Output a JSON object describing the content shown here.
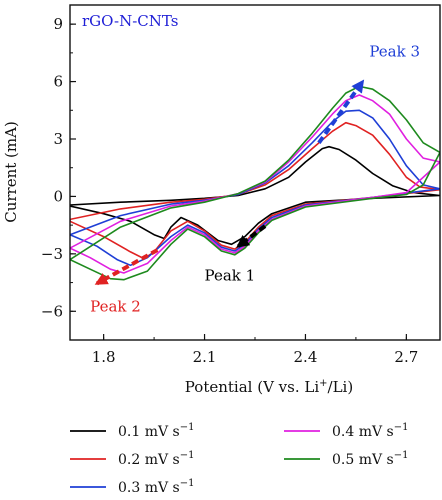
{
  "chart_data": {
    "type": "line",
    "title": "rGO-N-CNTs",
    "title_color": "#1f1fd6",
    "xlabel": {
      "main": "Potential (V vs. Li",
      "sup": "+",
      "tail": "/Li)"
    },
    "ylabel": "Current (mA)",
    "xlim": [
      1.7,
      2.8
    ],
    "ylim": [
      -7.5,
      10
    ],
    "x_ticks": [
      1.8,
      2.1,
      2.4,
      2.7
    ],
    "x_tick_labels": [
      "1.8",
      "2.1",
      "2.4",
      "2.7"
    ],
    "y_ticks": [
      9,
      6,
      3,
      0,
      -3,
      -6
    ],
    "y_tick_labels": [
      "9",
      "6",
      "3",
      "0",
      "−3",
      "−6"
    ],
    "grid": false,
    "legend_position": "below",
    "series": [
      {
        "name": "0.1 mV s",
        "unit_sup": "−1",
        "color": "#000000",
        "anodic": [
          [
            1.7,
            -0.45
          ],
          [
            1.85,
            -0.3
          ],
          [
            2.0,
            -0.2
          ],
          [
            2.1,
            -0.1
          ],
          [
            2.2,
            0.05
          ],
          [
            2.28,
            0.4
          ],
          [
            2.35,
            1.0
          ],
          [
            2.4,
            1.8
          ],
          [
            2.45,
            2.5
          ],
          [
            2.47,
            2.6
          ],
          [
            2.5,
            2.45
          ],
          [
            2.55,
            1.9
          ],
          [
            2.6,
            1.2
          ],
          [
            2.66,
            0.55
          ],
          [
            2.72,
            0.2
          ],
          [
            2.8,
            0.05
          ]
        ],
        "cathodic": [
          [
            2.8,
            0.05
          ],
          [
            2.6,
            -0.1
          ],
          [
            2.4,
            -0.3
          ],
          [
            2.3,
            -0.9
          ],
          [
            2.26,
            -1.4
          ],
          [
            2.22,
            -2.1
          ],
          [
            2.18,
            -2.5
          ],
          [
            2.14,
            -2.3
          ],
          [
            2.08,
            -1.5
          ],
          [
            2.03,
            -1.1
          ],
          [
            2.0,
            -1.6
          ],
          [
            1.98,
            -2.2
          ],
          [
            1.95,
            -2.0
          ],
          [
            1.88,
            -1.3
          ],
          [
            1.8,
            -0.9
          ],
          [
            1.7,
            -0.5
          ]
        ]
      },
      {
        "name": "0.2 mV s",
        "unit_sup": "−1",
        "color": "#e02222",
        "anodic": [
          [
            1.7,
            -1.2
          ],
          [
            1.85,
            -0.65
          ],
          [
            2.0,
            -0.3
          ],
          [
            2.1,
            -0.15
          ],
          [
            2.2,
            0.1
          ],
          [
            2.28,
            0.6
          ],
          [
            2.35,
            1.4
          ],
          [
            2.42,
            2.5
          ],
          [
            2.48,
            3.4
          ],
          [
            2.52,
            3.85
          ],
          [
            2.55,
            3.7
          ],
          [
            2.6,
            3.2
          ],
          [
            2.65,
            2.2
          ],
          [
            2.7,
            1.0
          ],
          [
            2.74,
            0.5
          ],
          [
            2.8,
            0.35
          ]
        ],
        "cathodic": [
          [
            2.8,
            0.35
          ],
          [
            2.6,
            -0.05
          ],
          [
            2.4,
            -0.4
          ],
          [
            2.3,
            -1.0
          ],
          [
            2.26,
            -1.6
          ],
          [
            2.22,
            -2.4
          ],
          [
            2.19,
            -2.75
          ],
          [
            2.15,
            -2.55
          ],
          [
            2.1,
            -1.8
          ],
          [
            2.05,
            -1.3
          ],
          [
            2.0,
            -1.8
          ],
          [
            1.95,
            -2.9
          ],
          [
            1.92,
            -3.25
          ],
          [
            1.88,
            -2.9
          ],
          [
            1.8,
            -2.1
          ],
          [
            1.7,
            -1.3
          ]
        ]
      },
      {
        "name": "0.3 mV s",
        "unit_sup": "−1",
        "color": "#1f3fd6",
        "anodic": [
          [
            1.7,
            -2.0
          ],
          [
            1.85,
            -1.0
          ],
          [
            2.0,
            -0.4
          ],
          [
            2.1,
            -0.2
          ],
          [
            2.2,
            0.1
          ],
          [
            2.28,
            0.7
          ],
          [
            2.35,
            1.6
          ],
          [
            2.42,
            2.8
          ],
          [
            2.48,
            3.9
          ],
          [
            2.52,
            4.45
          ],
          [
            2.56,
            4.5
          ],
          [
            2.6,
            4.1
          ],
          [
            2.65,
            3.0
          ],
          [
            2.7,
            1.6
          ],
          [
            2.75,
            0.6
          ],
          [
            2.8,
            0.4
          ]
        ],
        "cathodic": [
          [
            2.8,
            0.4
          ],
          [
            2.6,
            -0.05
          ],
          [
            2.4,
            -0.45
          ],
          [
            2.3,
            -1.1
          ],
          [
            2.26,
            -1.7
          ],
          [
            2.22,
            -2.5
          ],
          [
            2.19,
            -2.85
          ],
          [
            2.15,
            -2.65
          ],
          [
            2.1,
            -1.9
          ],
          [
            2.05,
            -1.5
          ],
          [
            2.0,
            -2.1
          ],
          [
            1.93,
            -3.2
          ],
          [
            1.88,
            -3.6
          ],
          [
            1.84,
            -3.3
          ],
          [
            1.78,
            -2.6
          ],
          [
            1.7,
            -2.0
          ]
        ]
      },
      {
        "name": "0.4 mV s",
        "unit_sup": "−1",
        "color": "#e020e0",
        "anodic": [
          [
            1.7,
            -2.7
          ],
          [
            1.85,
            -1.3
          ],
          [
            2.0,
            -0.5
          ],
          [
            2.1,
            -0.25
          ],
          [
            2.2,
            0.15
          ],
          [
            2.28,
            0.75
          ],
          [
            2.35,
            1.8
          ],
          [
            2.42,
            3.1
          ],
          [
            2.48,
            4.3
          ],
          [
            2.52,
            5.0
          ],
          [
            2.56,
            5.3
          ],
          [
            2.6,
            5.0
          ],
          [
            2.65,
            4.3
          ],
          [
            2.7,
            3.0
          ],
          [
            2.75,
            2.0
          ],
          [
            2.8,
            1.8
          ]
        ],
        "cathodic": [
          [
            2.8,
            1.8
          ],
          [
            2.7,
            0.2
          ],
          [
            2.6,
            -0.05
          ],
          [
            2.4,
            -0.5
          ],
          [
            2.3,
            -1.2
          ],
          [
            2.26,
            -1.8
          ],
          [
            2.22,
            -2.6
          ],
          [
            2.19,
            -2.95
          ],
          [
            2.15,
            -2.75
          ],
          [
            2.1,
            -2.0
          ],
          [
            2.05,
            -1.6
          ],
          [
            2.0,
            -2.3
          ],
          [
            1.93,
            -3.5
          ],
          [
            1.86,
            -4.0
          ],
          [
            1.82,
            -3.8
          ],
          [
            1.76,
            -3.2
          ],
          [
            1.7,
            -2.7
          ]
        ]
      },
      {
        "name": "0.5 mV s",
        "unit_sup": "−1",
        "color": "#1e8a1e",
        "anodic": [
          [
            1.7,
            -3.3
          ],
          [
            1.85,
            -1.6
          ],
          [
            2.0,
            -0.6
          ],
          [
            2.1,
            -0.3
          ],
          [
            2.2,
            0.15
          ],
          [
            2.28,
            0.8
          ],
          [
            2.35,
            1.9
          ],
          [
            2.42,
            3.3
          ],
          [
            2.48,
            4.6
          ],
          [
            2.52,
            5.4
          ],
          [
            2.56,
            5.75
          ],
          [
            2.6,
            5.6
          ],
          [
            2.65,
            5.0
          ],
          [
            2.7,
            4.0
          ],
          [
            2.75,
            2.8
          ],
          [
            2.8,
            2.3
          ]
        ],
        "cathodic": [
          [
            2.8,
            2.3
          ],
          [
            2.75,
            0.6
          ],
          [
            2.7,
            0.1
          ],
          [
            2.6,
            -0.1
          ],
          [
            2.4,
            -0.55
          ],
          [
            2.3,
            -1.25
          ],
          [
            2.26,
            -1.9
          ],
          [
            2.22,
            -2.7
          ],
          [
            2.19,
            -3.05
          ],
          [
            2.15,
            -2.85
          ],
          [
            2.1,
            -2.1
          ],
          [
            2.05,
            -1.7
          ],
          [
            2.0,
            -2.5
          ],
          [
            1.93,
            -3.9
          ],
          [
            1.86,
            -4.35
          ],
          [
            1.82,
            -4.3
          ],
          [
            1.76,
            -3.8
          ],
          [
            1.7,
            -3.3
          ]
        ]
      }
    ],
    "annotations": [
      {
        "label": "Peak 1",
        "color": "#000000",
        "text_at": [
          2.1,
          -4.4
        ],
        "arrow_from": [
          2.28,
          -1.55
        ],
        "arrow_to": [
          2.2,
          -2.6
        ],
        "solid_head": true
      },
      {
        "label": "Peak 2",
        "color": "#e02222",
        "text_at": [
          1.76,
          -6.0
        ],
        "arrow_from": [
          1.96,
          -2.8
        ],
        "arrow_to": [
          1.78,
          -4.55
        ],
        "solid_head": false
      },
      {
        "label": "Peak 3",
        "color": "#1f3fd6",
        "text_at": [
          2.59,
          7.3
        ],
        "arrow_from": [
          2.44,
          2.8
        ],
        "arrow_to": [
          2.57,
          6.0
        ],
        "solid_head": false
      }
    ]
  }
}
